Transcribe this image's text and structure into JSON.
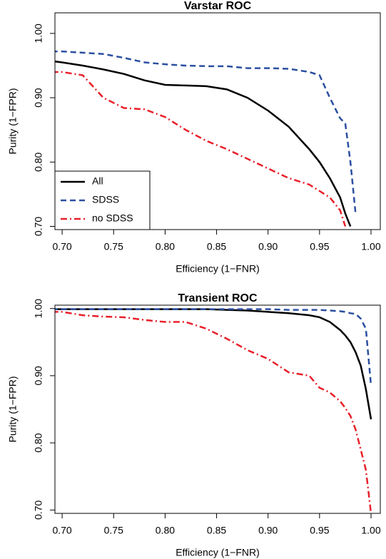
{
  "chart_data": [
    {
      "type": "line",
      "title": "Varstar ROC",
      "x_label": "Efficiency (1−FNR)",
      "y_label": "Purity (1−FPR)",
      "x": [
        0.69,
        0.7,
        0.72,
        0.74,
        0.76,
        0.78,
        0.8,
        0.82,
        0.84,
        0.86,
        0.88,
        0.9,
        0.92,
        0.94,
        0.95,
        0.96,
        0.97,
        0.975,
        0.98,
        0.985,
        0.99,
        0.995,
        1.0
      ],
      "series": [
        {
          "name": "All",
          "color": "#000000",
          "dash": "solid",
          "values": [
            0.957,
            0.955,
            0.95,
            0.944,
            0.937,
            0.927,
            0.92,
            0.919,
            0.918,
            0.913,
            0.9,
            0.88,
            0.855,
            0.82,
            0.8,
            0.775,
            0.745,
            0.72,
            0.7,
            null,
            null,
            null,
            null
          ]
        },
        {
          "name": "SDSS",
          "color": "#2b4fa0",
          "dash": "dashed",
          "values": [
            0.972,
            0.972,
            0.97,
            0.968,
            0.962,
            0.955,
            0.952,
            0.95,
            0.949,
            0.949,
            0.946,
            0.946,
            0.945,
            0.94,
            0.935,
            0.9,
            0.868,
            0.86,
            0.8,
            0.72,
            null,
            null,
            null
          ]
        },
        {
          "name": "no SDSS",
          "color": "#e8202a",
          "dash": "dashdot",
          "values": [
            0.94,
            0.94,
            0.935,
            0.9,
            0.884,
            0.882,
            0.87,
            0.85,
            0.833,
            0.82,
            0.805,
            0.79,
            0.775,
            0.765,
            0.755,
            0.745,
            0.725,
            0.7,
            null,
            null,
            null,
            null,
            null
          ]
        }
      ],
      "xlim": [
        0.693,
        1.009
      ],
      "ylim": [
        0.695,
        1.032
      ],
      "xticks": [
        {
          "value": 0.7,
          "label": "0.70"
        },
        {
          "value": 0.75,
          "label": "0.75"
        },
        {
          "value": 0.8,
          "label": "0.80"
        },
        {
          "value": 0.85,
          "label": "0.85"
        },
        {
          "value": 0.9,
          "label": "0.90"
        },
        {
          "value": 0.95,
          "label": "0.95"
        },
        {
          "value": 1.0,
          "label": "1.00"
        }
      ],
      "yticks": [
        {
          "value": 0.7,
          "label": "0.70"
        },
        {
          "value": 0.8,
          "label": "0.80"
        },
        {
          "value": 0.9,
          "label": "0.90"
        },
        {
          "value": 1.0,
          "label": "1.00"
        }
      ],
      "legend": "bottom-left"
    },
    {
      "type": "line",
      "title": "Transient ROC",
      "x_label": "Efficiency (1−FNR)",
      "y_label": "Purity (1−FPR)",
      "x": [
        0.69,
        0.7,
        0.72,
        0.74,
        0.76,
        0.78,
        0.8,
        0.82,
        0.84,
        0.86,
        0.88,
        0.9,
        0.92,
        0.94,
        0.95,
        0.96,
        0.97,
        0.975,
        0.98,
        0.985,
        0.99,
        0.995,
        1.0
      ],
      "series": [
        {
          "name": "All",
          "color": "#000000",
          "dash": "solid",
          "values": [
            0.999,
            0.999,
            0.999,
            0.999,
            0.999,
            0.999,
            0.999,
            0.999,
            0.999,
            0.998,
            0.997,
            0.995,
            0.993,
            0.99,
            0.987,
            0.98,
            0.968,
            0.96,
            0.95,
            0.935,
            0.915,
            0.88,
            0.835
          ]
        },
        {
          "name": "SDSS",
          "color": "#2b4fa0",
          "dash": "dashed",
          "values": [
            0.999,
            0.999,
            0.999,
            0.999,
            0.999,
            0.999,
            0.999,
            0.999,
            0.999,
            0.999,
            0.999,
            0.999,
            0.998,
            0.998,
            0.998,
            0.997,
            0.996,
            0.995,
            0.993,
            0.992,
            0.985,
            0.97,
            0.885
          ]
        },
        {
          "name": "no SDSS",
          "color": "#e8202a",
          "dash": "dashdot",
          "values": [
            0.995,
            0.995,
            0.99,
            0.988,
            0.987,
            0.983,
            0.98,
            0.98,
            0.97,
            0.955,
            0.938,
            0.925,
            0.905,
            0.9,
            0.882,
            0.875,
            0.862,
            0.852,
            0.84,
            0.82,
            0.79,
            0.76,
            0.695
          ]
        }
      ],
      "xlim": [
        0.693,
        1.009
      ],
      "ylim": [
        0.695,
        1.005
      ],
      "xticks": [
        {
          "value": 0.7,
          "label": "0.70"
        },
        {
          "value": 0.75,
          "label": "0.75"
        },
        {
          "value": 0.8,
          "label": "0.80"
        },
        {
          "value": 0.85,
          "label": "0.85"
        },
        {
          "value": 0.9,
          "label": "0.90"
        },
        {
          "value": 0.95,
          "label": "0.95"
        },
        {
          "value": 1.0,
          "label": "1.00"
        }
      ],
      "yticks": [
        {
          "value": 0.7,
          "label": "0.70"
        },
        {
          "value": 0.8,
          "label": "0.80"
        },
        {
          "value": 0.9,
          "label": "0.90"
        },
        {
          "value": 1.0,
          "label": "1.00"
        }
      ]
    }
  ]
}
